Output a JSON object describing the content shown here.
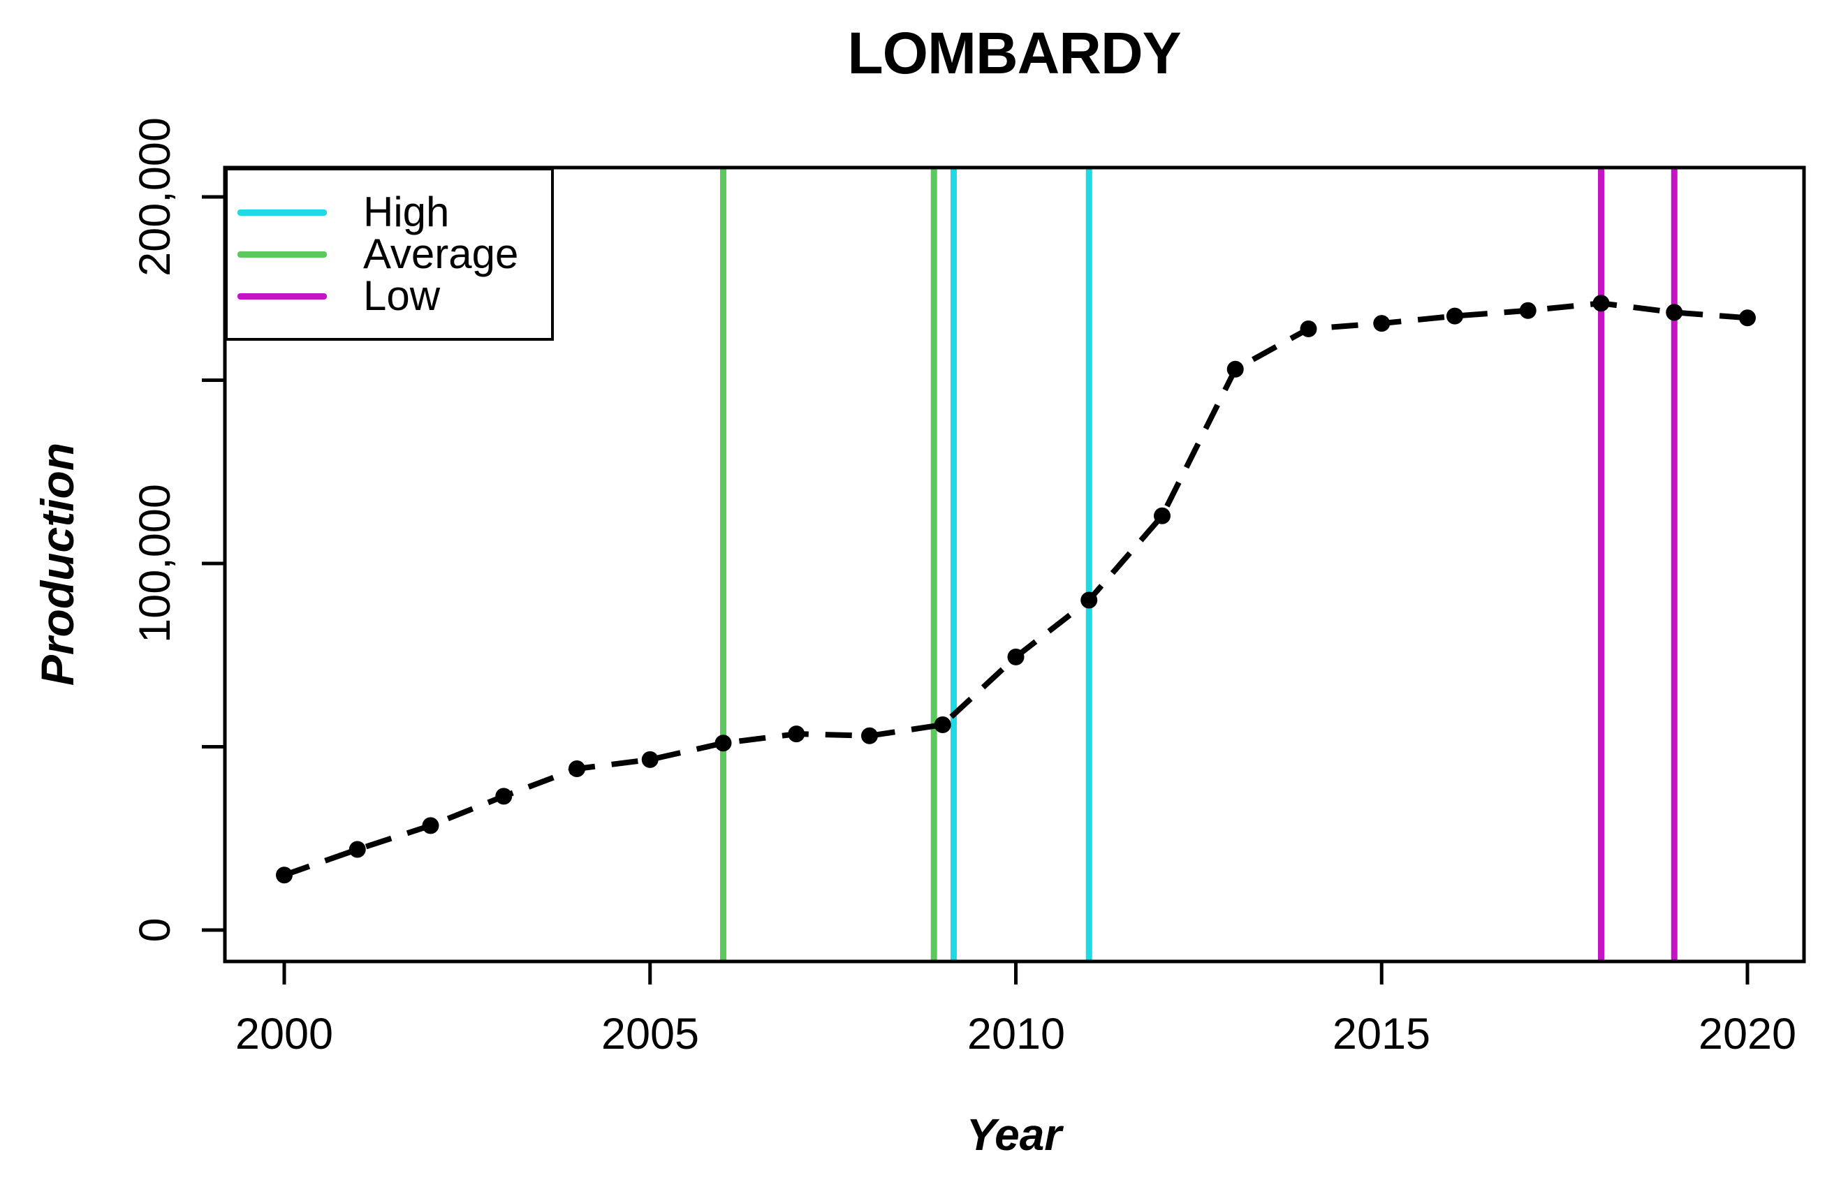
{
  "chart_data": {
    "type": "line",
    "title": "LOMBARDY",
    "xlabel": "Year",
    "ylabel": "Production",
    "series_style": {
      "color": "#000000",
      "line": "dashed",
      "marker": "filled-circle"
    },
    "x": [
      2000,
      2001,
      2002,
      2003,
      2004,
      2005,
      2006,
      2007,
      2008,
      2009,
      2010,
      2011,
      2012,
      2013,
      2014,
      2015,
      2016,
      2017,
      2018,
      2019,
      2020
    ],
    "values": [
      15000,
      22000,
      28500,
      36500,
      44000,
      46500,
      51000,
      53500,
      53000,
      56000,
      74500,
      90000,
      113000,
      153000,
      164000,
      165500,
      167500,
      169000,
      171000,
      168500,
      167000
    ],
    "xlim": [
      1999,
      2021
    ],
    "ylim": [
      -8500,
      208000
    ],
    "grid": "off",
    "xticks": {
      "values": [
        2000,
        2005,
        2010,
        2015,
        2020
      ],
      "labels": [
        "2000",
        "2005",
        "2010",
        "2015",
        "2020"
      ]
    },
    "yticks": {
      "values": [
        0,
        50000,
        100000,
        150000,
        200000
      ],
      "labeled_values": [
        0,
        100000,
        200000
      ],
      "labels": [
        "0",
        "100,000",
        "200,000"
      ]
    },
    "vlines": [
      {
        "name": "High",
        "color": "#1FD9E3",
        "years": [
          2009.15,
          2011
        ]
      },
      {
        "name": "Average",
        "color": "#5CC95C",
        "years": [
          2006,
          2008.88
        ]
      },
      {
        "name": "Low",
        "color": "#C414C4",
        "years": [
          2018,
          2019
        ]
      }
    ],
    "legend": {
      "position": "top-left",
      "items": [
        {
          "label": "High",
          "color": "#1FD9E3"
        },
        {
          "label": "Average",
          "color": "#5CC95C"
        },
        {
          "label": "Low",
          "color": "#C414C4"
        }
      ]
    }
  }
}
